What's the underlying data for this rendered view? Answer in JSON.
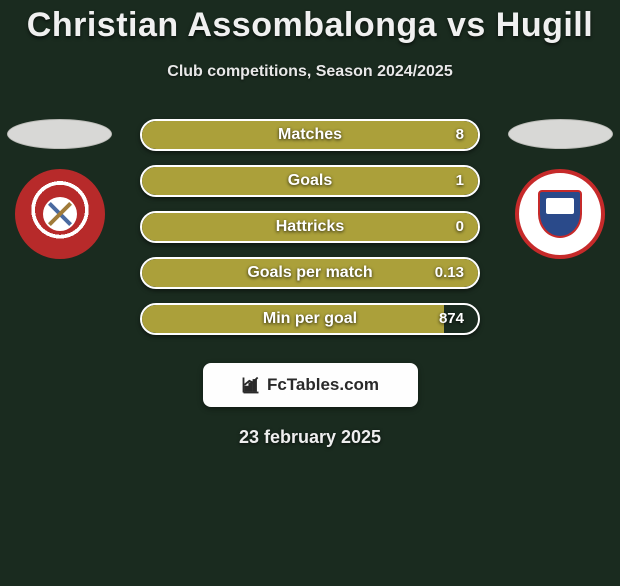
{
  "header": {
    "title": "Christian Assombalonga vs Hugill",
    "subtitle": "Club competitions, Season 2024/2025"
  },
  "colors": {
    "background": "#1a2b1f",
    "bar_fill": "#aba03a",
    "bar_border": "#ffffff",
    "text": "#ffffff",
    "logo_bg": "#fefefe",
    "logo_text": "#2a2a2a",
    "ellipse": "#d8d8d6",
    "left_crest_primary": "#b72a2a",
    "right_crest_border": "#c62a2a",
    "right_crest_shield": "#2a4a8a"
  },
  "stats": [
    {
      "label": "Matches",
      "value": "8",
      "fill_pct": 100
    },
    {
      "label": "Goals",
      "value": "1",
      "fill_pct": 100
    },
    {
      "label": "Hattricks",
      "value": "0",
      "fill_pct": 100
    },
    {
      "label": "Goals per match",
      "value": "0.13",
      "fill_pct": 100
    },
    {
      "label": "Min per goal",
      "value": "874",
      "fill_pct": 90
    }
  ],
  "branding": {
    "site": "FcTables.com"
  },
  "footer": {
    "date": "23 february 2025"
  },
  "typography": {
    "title_fontsize": 34,
    "subtitle_fontsize": 16,
    "stat_label_fontsize": 16,
    "stat_value_fontsize": 15,
    "date_fontsize": 18,
    "font_family": "Arial"
  }
}
